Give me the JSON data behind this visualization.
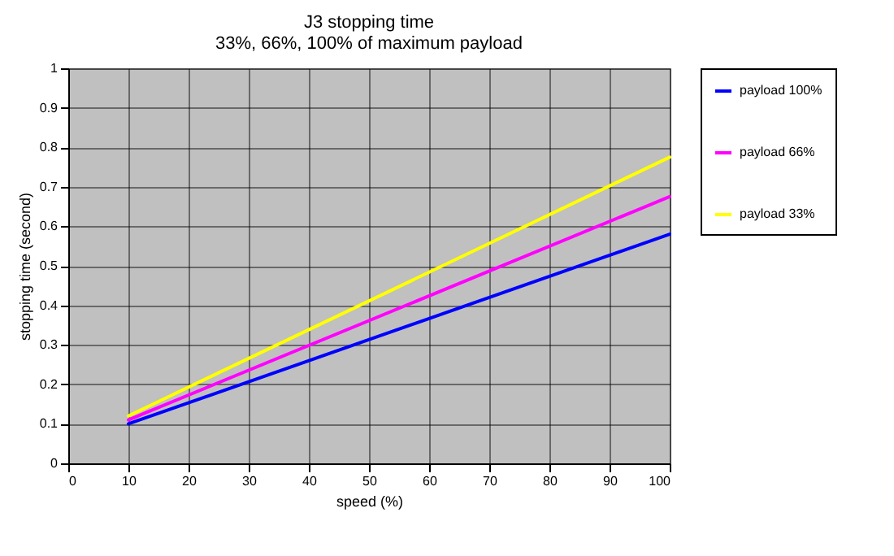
{
  "chart_data": {
    "type": "line",
    "title": "J3 stopping time",
    "subtitle": "33%, 66%, 100% of maximum payload",
    "xlabel": "speed (%)",
    "ylabel": "stopping time (second)",
    "x": [
      10,
      100
    ],
    "series": [
      {
        "name": "payload 100%",
        "color": "#0000ff",
        "values": [
          0.1,
          0.58
        ]
      },
      {
        "name": "payload 66%",
        "color": "#ff00ff",
        "values": [
          0.11,
          0.675
        ]
      },
      {
        "name": "payload 33%",
        "color": "#ffff00",
        "values": [
          0.12,
          0.775
        ]
      }
    ],
    "xlim": [
      0,
      100
    ],
    "xticks": [
      0,
      10,
      20,
      30,
      40,
      50,
      60,
      70,
      80,
      90,
      100
    ],
    "ylim": [
      0,
      1
    ],
    "yticks": [
      0,
      0.1,
      0.2,
      0.3,
      0.4,
      0.5,
      0.6,
      0.7,
      0.8,
      0.9,
      1
    ],
    "grid": true,
    "legend": "right",
    "marker": "none",
    "line_style": "solid"
  }
}
